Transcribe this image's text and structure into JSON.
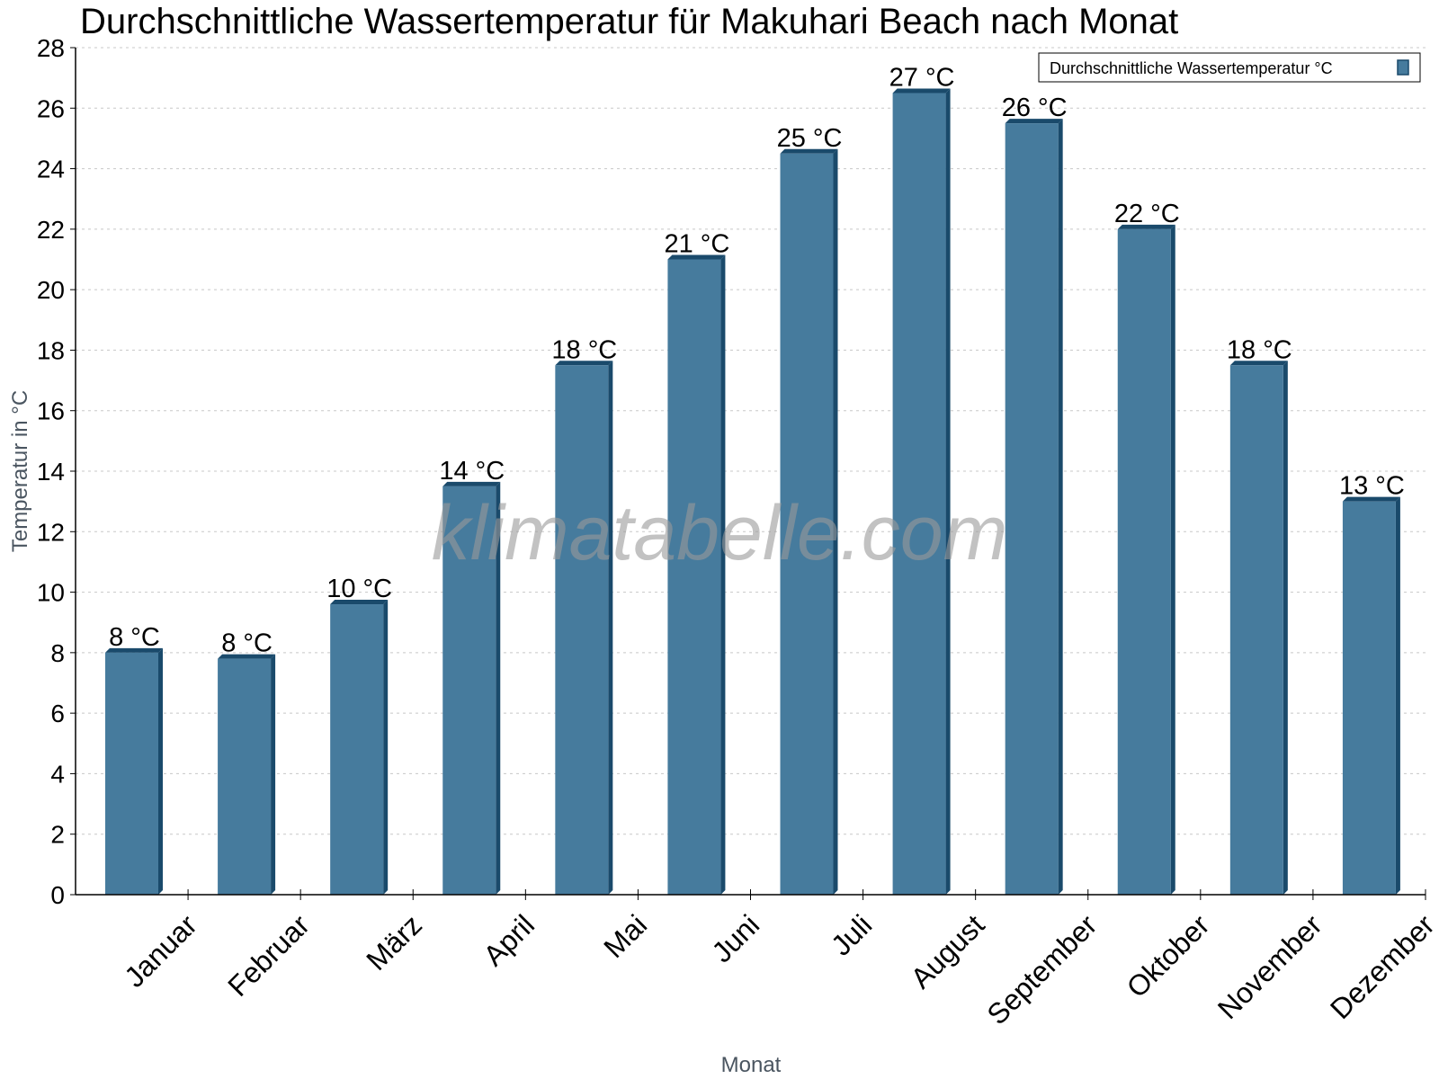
{
  "chart_data": {
    "type": "bar",
    "title": "Durchschnittliche Wassertemperatur für Makuhari Beach nach Monat",
    "xlabel": "Monat",
    "ylabel": "Temperatur in °C",
    "ylim": [
      0,
      28
    ],
    "yticks": [
      0,
      2,
      4,
      6,
      8,
      10,
      12,
      14,
      16,
      18,
      20,
      22,
      24,
      26,
      28
    ],
    "grid": true,
    "legend_position": "top-right",
    "categories": [
      "Januar",
      "Februar",
      "März",
      "April",
      "Mai",
      "Juni",
      "Juli",
      "August",
      "September",
      "Oktober",
      "November",
      "Dezember"
    ],
    "series": [
      {
        "name": "Durchschnittliche Wassertemperatur °C",
        "color": "#467b9d",
        "side_color": "#1a4a6b",
        "values": [
          8.0,
          7.8,
          9.6,
          13.5,
          17.5,
          21.0,
          24.5,
          26.5,
          25.5,
          22.0,
          17.5,
          13.0
        ],
        "data_labels": [
          "8 °C",
          "8 °C",
          "10 °C",
          "14 °C",
          "18 °C",
          "21 °C",
          "25 °C",
          "27 °C",
          "26 °C",
          "22 °C",
          "18 °C",
          "13 °C"
        ]
      }
    ],
    "watermark": "klimatabelle.com"
  }
}
